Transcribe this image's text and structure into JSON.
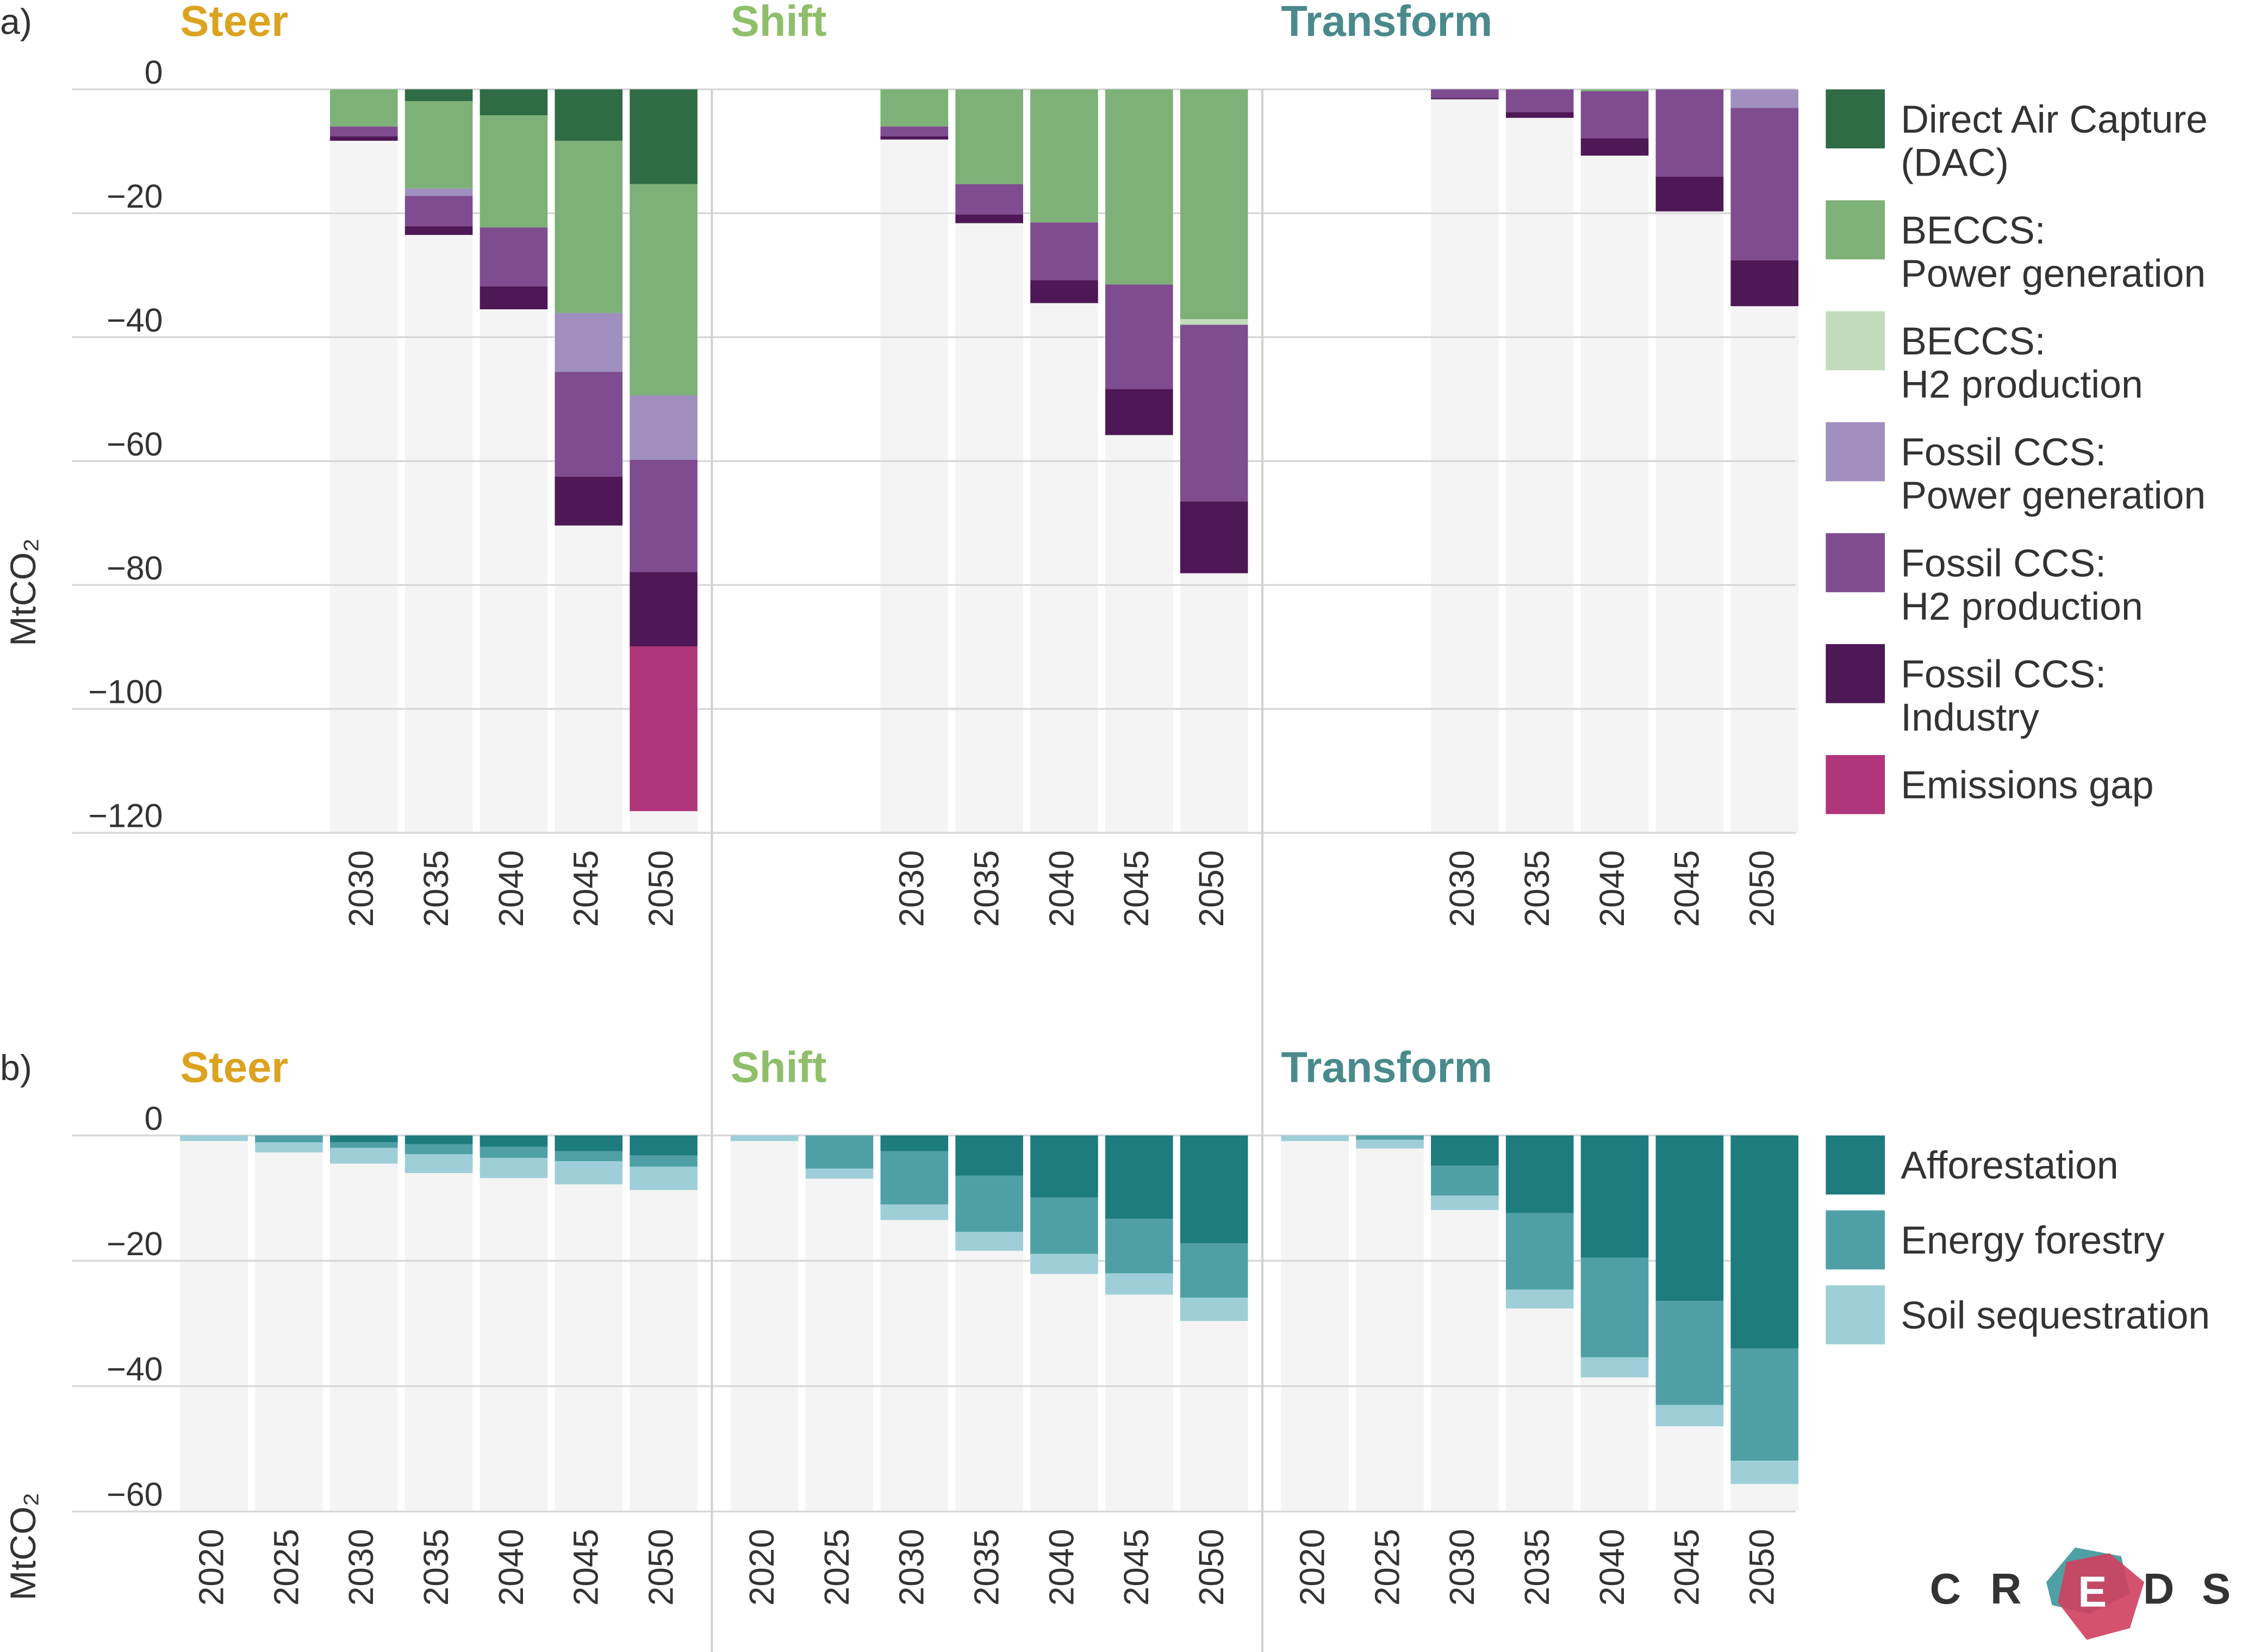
{
  "chart_data": [
    {
      "label": "a)",
      "type": "bar",
      "stacked": true,
      "ylabel": "MtCO₂",
      "ylim": [
        -120,
        0
      ],
      "yticks": [
        0,
        {
          "value": -20,
          "label": "−20"
        },
        {
          "value": -40,
          "label": "−40"
        },
        {
          "value": -60,
          "label": "−60"
        },
        {
          "value": -80,
          "label": "−80"
        },
        {
          "value": -100,
          "label": "−100"
        },
        {
          "value": -120,
          "label": "−120"
        }
      ],
      "grid": true,
      "panels": [
        {
          "title": "Steer",
          "color": "#dba320",
          "categories": [
            "2030",
            "2035",
            "2040",
            "2045",
            "2050"
          ]
        },
        {
          "title": "Shift",
          "color": "#8fbf6a",
          "categories": [
            "2030",
            "2035",
            "2040",
            "2045",
            "2050"
          ]
        },
        {
          "title": "Transform",
          "color": "#4a8a8c",
          "categories": [
            "2030",
            "2035",
            "2040",
            "2045",
            "2050"
          ]
        }
      ],
      "series": [
        {
          "name": "Direct Air Capture\n(DAC)",
          "color": "#2f6b45",
          "values": [
            [
              0,
              -1.9,
              -4.2,
              -8.3,
              -15.3
            ],
            [
              0,
              0,
              0,
              0,
              0
            ],
            [
              0,
              0,
              0,
              0,
              0
            ]
          ]
        },
        {
          "name": "BECCS:\nPower generation",
          "color": "#7db177",
          "values": [
            [
              -6.0,
              -14.1,
              -18.1,
              -27.8,
              -34.1
            ],
            [
              -6.0,
              -15.3,
              -21.5,
              -31.5,
              -37.1
            ],
            [
              0,
              0,
              -0.3,
              0,
              0
            ]
          ]
        },
        {
          "name": "BECCS:\nH2 production",
          "color": "#c2dcbb",
          "values": [
            [
              0,
              0,
              0,
              0,
              0
            ],
            [
              0,
              0,
              0,
              0,
              -0.9
            ],
            [
              0,
              0,
              0,
              0,
              0
            ]
          ]
        },
        {
          "name": "Fossil CCS:\nPower generation",
          "color": "#a08fbf",
          "values": [
            [
              0,
              -1.2,
              0,
              -9.5,
              -10.4
            ],
            [
              0,
              0,
              0,
              0,
              0
            ],
            [
              0,
              0,
              0,
              0,
              -3.0
            ]
          ]
        },
        {
          "name": "Fossil CCS:\nH2 production",
          "color": "#7f4c90",
          "values": [
            [
              -1.6,
              -4.9,
              -9.5,
              -16.9,
              -18.1
            ],
            [
              -1.6,
              -4.9,
              -9.3,
              -16.9,
              -28.5
            ],
            [
              -1.4,
              -3.7,
              -7.6,
              -14.1,
              -24.6
            ]
          ]
        },
        {
          "name": "Fossil CCS:\nIndustry",
          "color": "#4e1756",
          "values": [
            [
              -0.7,
              -1.4,
              -3.7,
              -7.9,
              -12.0
            ],
            [
              -0.5,
              -1.4,
              -3.7,
              -7.4,
              -11.6
            ],
            [
              -0.2,
              -0.9,
              -2.8,
              -5.6,
              -7.4
            ]
          ]
        },
        {
          "name": "Emissions gap",
          "color": "#b0357a",
          "values": [
            [
              0,
              0,
              0,
              0,
              -26.6
            ],
            [
              0,
              0,
              0,
              0,
              0
            ],
            [
              0,
              0,
              0,
              0,
              0
            ]
          ]
        }
      ]
    },
    {
      "label": "b)",
      "type": "bar",
      "stacked": true,
      "ylabel": "MtCO₂",
      "ylim": [
        -60,
        0
      ],
      "yticks": [
        0,
        {
          "value": -20,
          "label": "−20"
        },
        {
          "value": -40,
          "label": "−40"
        },
        {
          "value": -60,
          "label": "−60"
        }
      ],
      "grid": true,
      "panels": [
        {
          "title": "Steer",
          "color": "#dba320",
          "categories": [
            "2020",
            "2025",
            "2030",
            "2035",
            "2040",
            "2045",
            "2050"
          ]
        },
        {
          "title": "Shift",
          "color": "#8fbf6a",
          "categories": [
            "2020",
            "2025",
            "2030",
            "2035",
            "2040",
            "2045",
            "2050"
          ]
        },
        {
          "title": "Transform",
          "color": "#4a8a8c",
          "categories": [
            "2020",
            "2025",
            "2030",
            "2035",
            "2040",
            "2045",
            "2050"
          ]
        }
      ],
      "series": [
        {
          "name": "Afforestation",
          "color": "#1e7b7e",
          "values": [
            [
              0,
              0,
              -1.1,
              -1.4,
              -1.8,
              -2.5,
              -3.2
            ],
            [
              0,
              0,
              -2.5,
              -6.4,
              -9.9,
              -13.3,
              -17.2
            ],
            [
              0,
              0,
              -4.8,
              -12.4,
              -19.5,
              -26.4,
              -34.0
            ]
          ]
        },
        {
          "name": "Energy forestry",
          "color": "#4fa0a6",
          "values": [
            [
              0,
              -1.1,
              -0.9,
              -1.6,
              -1.8,
              -1.6,
              -1.8
            ],
            [
              0,
              -5.3,
              -8.5,
              -9.0,
              -9.0,
              -8.7,
              -8.7
            ],
            [
              0,
              -0.7,
              -4.8,
              -12.2,
              -15.9,
              -16.6,
              -17.9
            ]
          ]
        },
        {
          "name": "Soil sequestration",
          "color": "#9ecfd8",
          "values": [
            [
              -0.9,
              -1.6,
              -2.5,
              -3.0,
              -3.2,
              -3.7,
              -3.7
            ],
            [
              -0.9,
              -1.6,
              -2.5,
              -3.0,
              -3.2,
              -3.4,
              -3.7
            ],
            [
              -0.9,
              -1.4,
              -2.3,
              -3.0,
              -3.2,
              -3.4,
              -3.7
            ]
          ]
        }
      ]
    }
  ],
  "logo": [
    "C",
    "R",
    "E",
    "D",
    "S"
  ]
}
